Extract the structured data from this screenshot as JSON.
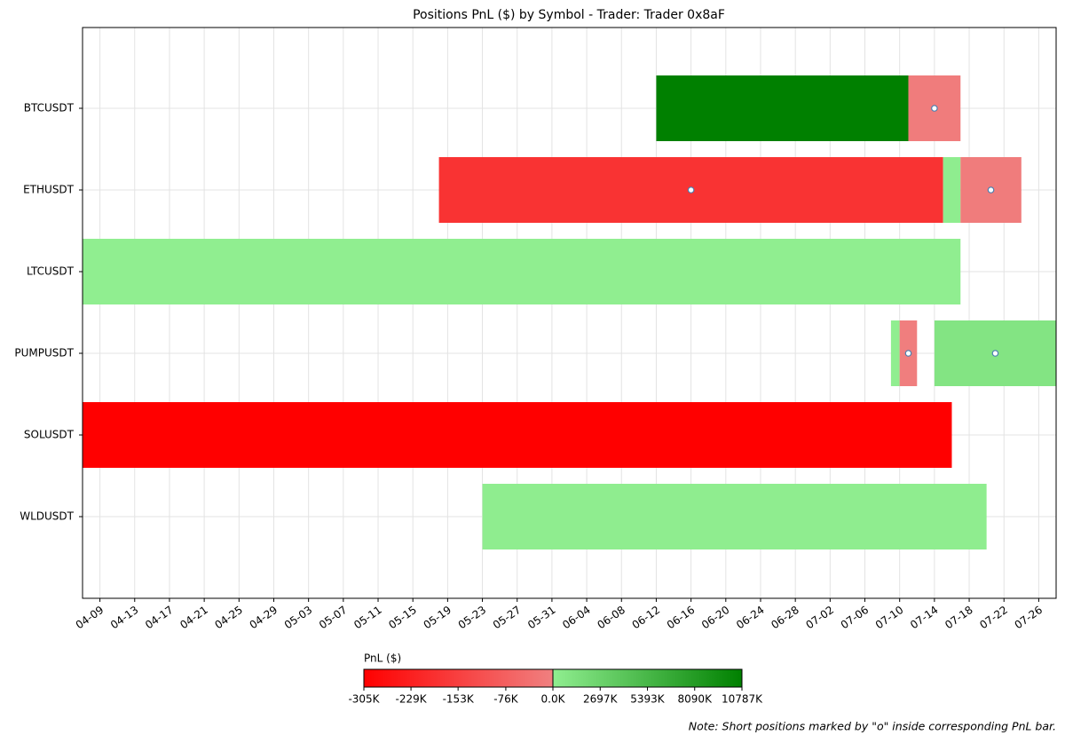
{
  "chart_data": {
    "type": "timeline",
    "title": "Positions PnL ($) by Symbol - Trader: Trader 0x8aF",
    "xlim": [
      "04-07",
      "07-28"
    ],
    "xticks": [
      "04-09",
      "04-13",
      "04-17",
      "04-21",
      "04-25",
      "04-29",
      "05-03",
      "05-07",
      "05-11",
      "05-15",
      "05-19",
      "05-23",
      "05-27",
      "05-31",
      "06-04",
      "06-08",
      "06-12",
      "06-16",
      "06-20",
      "06-24",
      "06-28",
      "07-02",
      "07-06",
      "07-10",
      "07-14",
      "07-18",
      "07-22",
      "07-26"
    ],
    "grid": true,
    "series": [
      {
        "name": "BTCUSDT",
        "segments": [
          {
            "start": "06-12",
            "end": "07-11",
            "value": 10787000,
            "short": false
          },
          {
            "start": "07-11",
            "end": "07-17",
            "value": -10000,
            "short": true
          }
        ]
      },
      {
        "name": "ETHUSDT",
        "segments": [
          {
            "start": "05-18",
            "end": "07-15",
            "value": -183000,
            "short": true
          },
          {
            "start": "07-15",
            "end": "07-17",
            "value": 50000,
            "short": false
          },
          {
            "start": "07-17",
            "end": "07-24",
            "value": -10000,
            "short": true
          }
        ]
      },
      {
        "name": "LTCUSDT",
        "segments": [
          {
            "start": "04-07",
            "end": "07-17",
            "value": 20000,
            "short": false
          }
        ]
      },
      {
        "name": "PUMPUSDT",
        "segments": [
          {
            "start": "07-09",
            "end": "07-10",
            "value": 20000,
            "short": false
          },
          {
            "start": "07-10",
            "end": "07-12",
            "value": -5000,
            "short": true
          },
          {
            "start": "07-14",
            "end": "07-28",
            "value": 1000000,
            "short": true
          }
        ]
      },
      {
        "name": "SOLUSDT",
        "segments": [
          {
            "start": "04-07",
            "end": "07-16",
            "value": -305000,
            "short": false
          }
        ]
      },
      {
        "name": "WLDUSDT",
        "segments": [
          {
            "start": "05-23",
            "end": "07-20",
            "value": 50000,
            "short": false
          }
        ]
      }
    ],
    "colorbar": {
      "label": "PnL ($)",
      "negative_colors": [
        "#ff0000",
        "#f08080"
      ],
      "positive_colors": [
        "#90ee90",
        "#008000"
      ],
      "negative_lim": [
        -305000,
        0
      ],
      "positive_lim": [
        0,
        10787000
      ],
      "ticks": [
        {
          "value": -305000,
          "label": "-305K"
        },
        {
          "value": -229000,
          "label": "-229K"
        },
        {
          "value": -153000,
          "label": "-153K"
        },
        {
          "value": -76000,
          "label": "-76K"
        },
        {
          "value": 0,
          "label": "0.0K"
        },
        {
          "value": 2697000,
          "label": "2697K"
        },
        {
          "value": 5393000,
          "label": "5393K"
        },
        {
          "value": 8090000,
          "label": "8090K"
        },
        {
          "value": 10787000,
          "label": "10787K"
        }
      ]
    },
    "note": "Note: Short positions marked by \"o\" inside corresponding PnL bar."
  }
}
